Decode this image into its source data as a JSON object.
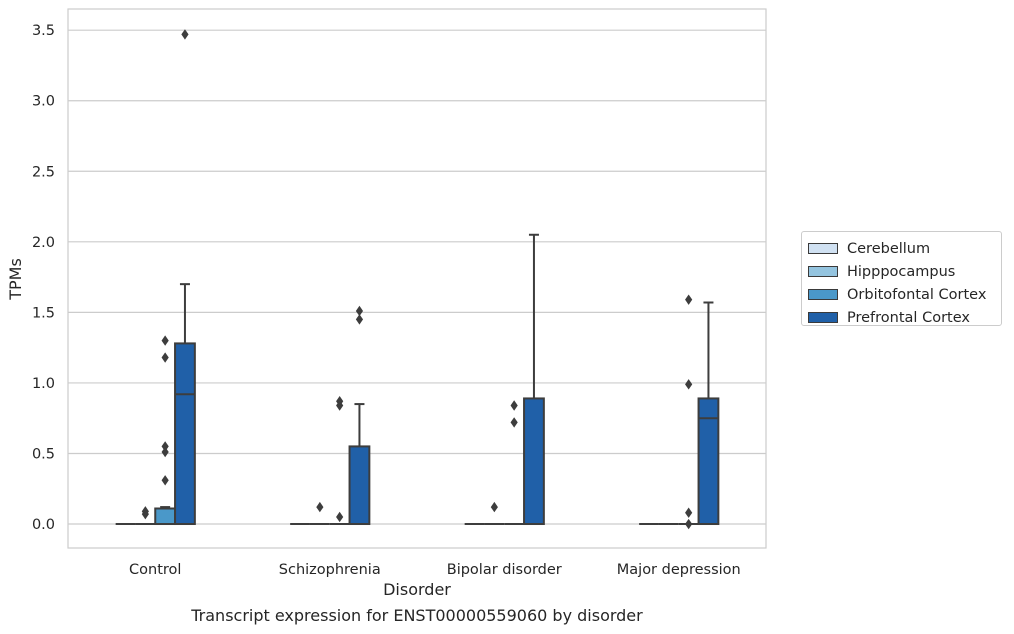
{
  "caption": "Transcript expression for ENST00000559060 by disorder",
  "chart_data": {
    "type": "box",
    "xlabel": "Disorder",
    "ylabel": "TPMs",
    "ylim": [
      -0.17,
      3.65
    ],
    "yticks": [
      0.0,
      0.5,
      1.0,
      1.5,
      2.0,
      2.5,
      3.0,
      3.5
    ],
    "ytick_labels": [
      "0.0",
      "0.5",
      "1.0",
      "1.5",
      "2.0",
      "2.5",
      "3.0",
      "3.5"
    ],
    "grid": "horizontal",
    "legend_placement": "outside right",
    "categories": [
      "Control",
      "Schizophrenia",
      "Bipolar disorder",
      "Major depression"
    ],
    "series": [
      {
        "name": "Cerebellum",
        "color": "#d0e1f2",
        "boxes": [
          {
            "q1": 0,
            "median": 0,
            "q3": 0,
            "whisker_low": 0,
            "whisker_high": 0,
            "outliers": []
          },
          {
            "q1": 0,
            "median": 0,
            "q3": 0,
            "whisker_low": 0,
            "whisker_high": 0,
            "outliers": []
          },
          {
            "q1": 0,
            "median": 0,
            "q3": 0,
            "whisker_low": 0,
            "whisker_high": 0,
            "outliers": []
          },
          {
            "q1": 0,
            "median": 0,
            "q3": 0,
            "whisker_low": 0,
            "whisker_high": 0,
            "outliers": []
          }
        ]
      },
      {
        "name": "Hipppocampus",
        "color": "#94c4df",
        "boxes": [
          {
            "q1": 0,
            "median": 0,
            "q3": 0,
            "whisker_low": 0,
            "whisker_high": 0,
            "outliers": [
              0.07,
              0.09
            ]
          },
          {
            "q1": 0,
            "median": 0,
            "q3": 0,
            "whisker_low": 0,
            "whisker_high": 0,
            "outliers": [
              0.12
            ]
          },
          {
            "q1": 0,
            "median": 0,
            "q3": 0,
            "whisker_low": 0,
            "whisker_high": 0,
            "outliers": [
              0.12
            ]
          },
          {
            "q1": 0,
            "median": 0,
            "q3": 0,
            "whisker_low": 0,
            "whisker_high": 0,
            "outliers": []
          }
        ]
      },
      {
        "name": "Orbitofontal Cortex",
        "color": "#4a98c9",
        "boxes": [
          {
            "q1": 0,
            "median": 0.11,
            "q3": 0.11,
            "whisker_low": 0,
            "whisker_high": 0.12,
            "outliers": [
              1.18,
              0.51
            ]
          },
          {
            "q1": 0,
            "median": 0,
            "q3": 0,
            "whisker_low": 0,
            "whisker_high": 0,
            "outliers": [
              0.87
            ]
          },
          {
            "q1": 0,
            "median": 0,
            "q3": 0,
            "whisker_low": 0,
            "whisker_high": 0,
            "outliers": [
              0.84
            ]
          },
          {
            "q1": 0,
            "median": 0,
            "q3": 0,
            "whisker_low": 0,
            "whisker_high": 0,
            "outliers": [
              0.99
            ]
          }
        ]
      },
      {
        "name": "Prefrontal Cortex",
        "color": "#2060a8",
        "boxes": [
          {
            "q1": 0,
            "median": 0.92,
            "q3": 1.28,
            "whisker_low": 0,
            "whisker_high": 1.7,
            "outliers": [
              3.47
            ]
          },
          {
            "q1": 0,
            "median": 0,
            "q3": 0.55,
            "whisker_low": 0,
            "whisker_high": 0.85,
            "outliers": [
              1.51,
              1.45
            ]
          },
          {
            "q1": 0,
            "median": 0,
            "q3": 0.89,
            "whisker_low": 0,
            "whisker_high": 2.05,
            "outliers": []
          },
          {
            "q1": 0,
            "median": 0.75,
            "q3": 0.89,
            "whisker_low": 0,
            "whisker_high": 1.57,
            "outliers": []
          }
        ]
      }
    ],
    "extra_outliers": [
      {
        "category": 0,
        "series": 2,
        "values": [
          1.3,
          0.55,
          0.31
        ]
      },
      {
        "category": 1,
        "series": 2,
        "values": [
          0.84,
          0.05
        ]
      },
      {
        "category": 2,
        "series": 2,
        "values": [
          0.72
        ]
      },
      {
        "category": 3,
        "series": 2,
        "values": [
          1.59,
          0.08,
          0.0
        ]
      }
    ]
  }
}
